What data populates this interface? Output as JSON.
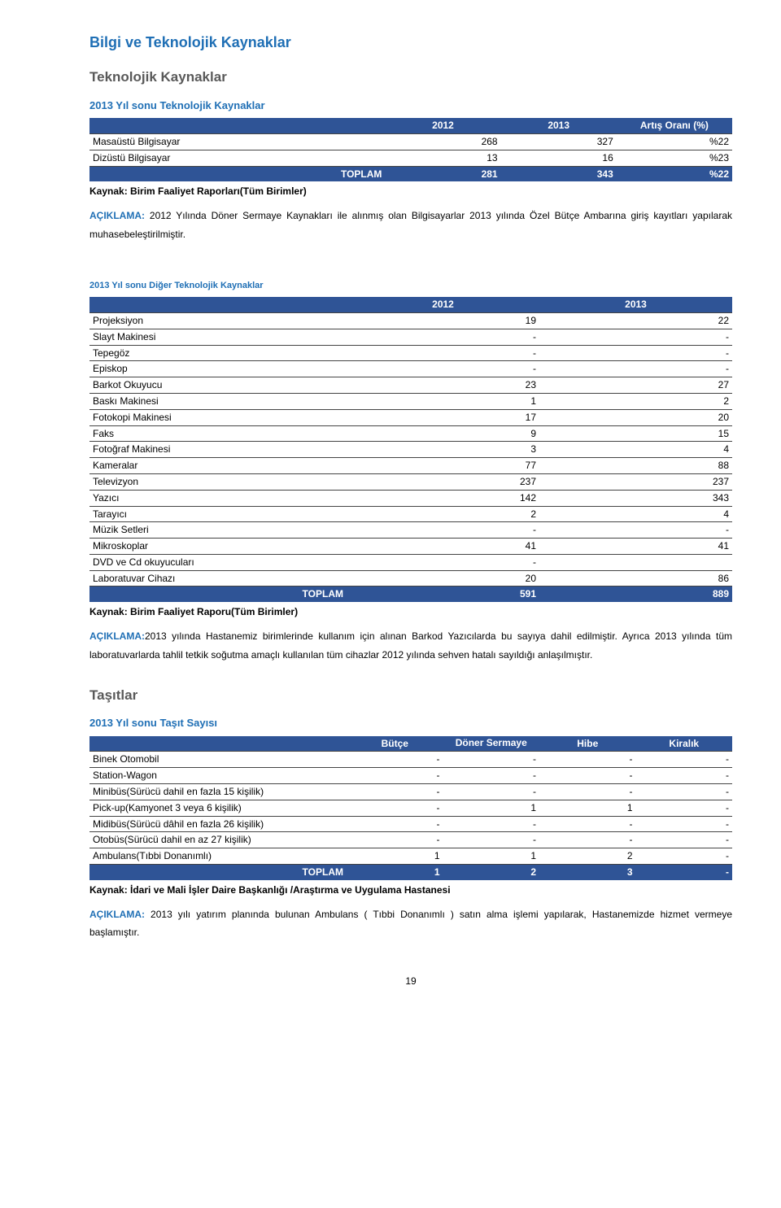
{
  "colors": {
    "blue_text": "#1f6fb5",
    "header_bg": "#2f5496",
    "section_gray": "#595959",
    "border": "#444444",
    "white": "#ffffff"
  },
  "heading_main": "Bilgi ve Teknolojik Kaynaklar",
  "section1": {
    "title": "Teknolojik Kaynaklar",
    "table1": {
      "title": "2013 Yıl sonu Teknolojik Kaynaklar",
      "headers": [
        "",
        "2012",
        "2013",
        "Artış Oranı (%)"
      ],
      "rows": [
        {
          "label": "Masaüstü Bilgisayar",
          "v2012": "268",
          "v2013": "327",
          "pct": "%22"
        },
        {
          "label": "Dizüstü Bilgisayar",
          "v2012": "13",
          "v2013": "16",
          "pct": "%23"
        }
      ],
      "total": {
        "label": "TOPLAM",
        "v2012": "281",
        "v2013": "343",
        "pct": "%22"
      },
      "source": "Kaynak: Birim Faaliyet Raporları(Tüm Birimler)",
      "explain_label": "AÇIKLAMA:",
      "explain_text": " 2012 Yılında Döner Sermaye Kaynakları ile alınmış olan Bilgisayarlar 2013 yılında Özel Bütçe Ambarına giriş kayıtları yapılarak muhasebeleştirilmiştir."
    },
    "table2": {
      "title": "2013 Yıl sonu Diğer Teknolojik Kaynaklar",
      "headers": [
        "",
        "2012",
        "2013"
      ],
      "rows": [
        {
          "label": "Projeksiyon",
          "v2012": "19",
          "v2013": "22"
        },
        {
          "label": "Slayt Makinesi",
          "v2012": "-",
          "v2013": "-"
        },
        {
          "label": "Tepegöz",
          "v2012": "-",
          "v2013": "-"
        },
        {
          "label": "Episkop",
          "v2012": "-",
          "v2013": "-"
        },
        {
          "label": "Barkot Okuyucu",
          "v2012": "23",
          "v2013": "27"
        },
        {
          "label": "Baskı Makinesi",
          "v2012": "1",
          "v2013": "2"
        },
        {
          "label": "Fotokopi Makinesi",
          "v2012": "17",
          "v2013": "20"
        },
        {
          "label": "Faks",
          "v2012": "9",
          "v2013": "15"
        },
        {
          "label": "Fotoğraf Makinesi",
          "v2012": "3",
          "v2013": "4"
        },
        {
          "label": "Kameralar",
          "v2012": "77",
          "v2013": "88"
        },
        {
          "label": "Televizyon",
          "v2012": "237",
          "v2013": "237"
        },
        {
          "label": "Yazıcı",
          "v2012": "142",
          "v2013": "343"
        },
        {
          "label": "Tarayıcı",
          "v2012": "2",
          "v2013": "4"
        },
        {
          "label": "Müzik Setleri",
          "v2012": "-",
          "v2013": "-"
        },
        {
          "label": "Mikroskoplar",
          "v2012": "41",
          "v2013": "41"
        },
        {
          "label": "DVD ve Cd okuyucuları",
          "v2012": "-",
          "v2013": ""
        },
        {
          "label": "Laboratuvar Cihazı",
          "v2012": "20",
          "v2013": "86"
        }
      ],
      "total": {
        "label": "TOPLAM",
        "v2012": "591",
        "v2013": "889"
      },
      "source": "Kaynak: Birim Faaliyet Raporu(Tüm Birimler)",
      "explain_label": "AÇIKLAMA:",
      "explain_text": "2013 yılında Hastanemiz birimlerinde kullanım için alınan Barkod Yazıcılarda bu sayıya dahil edilmiştir. Ayrıca 2013 yılında tüm laboratuvarlarda tahlil tetkik soğutma amaçlı kullanılan tüm cihazlar 2012 yılında sehven hatalı sayıldığı anlaşılmıştır."
    }
  },
  "section2": {
    "title": "Taşıtlar",
    "table3": {
      "title": "2013 Yıl sonu Taşıt Sayısı",
      "headers": [
        "",
        "Bütçe",
        "Döner Sermaye",
        "Hibe",
        "Kiralık"
      ],
      "rows": [
        {
          "label": "Binek Otomobil",
          "c1": "-",
          "c2": "-",
          "c3": "-",
          "c4": "-"
        },
        {
          "label": "Station-Wagon",
          "c1": "-",
          "c2": "-",
          "c3": "-",
          "c4": "-"
        },
        {
          "label": "Minibüs(Sürücü dahil en fazla 15 kişilik)",
          "c1": "-",
          "c2": "-",
          "c3": "-",
          "c4": "-"
        },
        {
          "label": "Pick-up(Kamyonet 3 veya 6 kişilik)",
          "c1": "-",
          "c2": "1",
          "c3": "1",
          "c4": "-"
        },
        {
          "label": "Midibüs(Sürücü dâhil en fazla 26 kişilik)",
          "c1": "-",
          "c2": "-",
          "c3": "-",
          "c4": "-"
        },
        {
          "label": "Otobüs(Sürücü dahil en az 27 kişilik)",
          "c1": "-",
          "c2": "-",
          "c3": "-",
          "c4": "-"
        },
        {
          "label": "Ambulans(Tıbbi Donanımlı)",
          "c1": "1",
          "c2": "1",
          "c3": "2",
          "c4": "-"
        }
      ],
      "total": {
        "label": "TOPLAM",
        "c1": "1",
        "c2": "2",
        "c3": "3",
        "c4": "-"
      },
      "source": "Kaynak: İdari ve Mali İşler Daire Başkanlığı /Araştırma ve Uygulama Hastanesi",
      "explain_label": "AÇIKLAMA:",
      "explain_text": " 2013 yılı yatırım planında bulunan Ambulans ( Tıbbi Donanımlı ) satın alma işlemi yapılarak, Hastanemizde hizmet vermeye başlamıştır."
    }
  },
  "page_number": "19"
}
